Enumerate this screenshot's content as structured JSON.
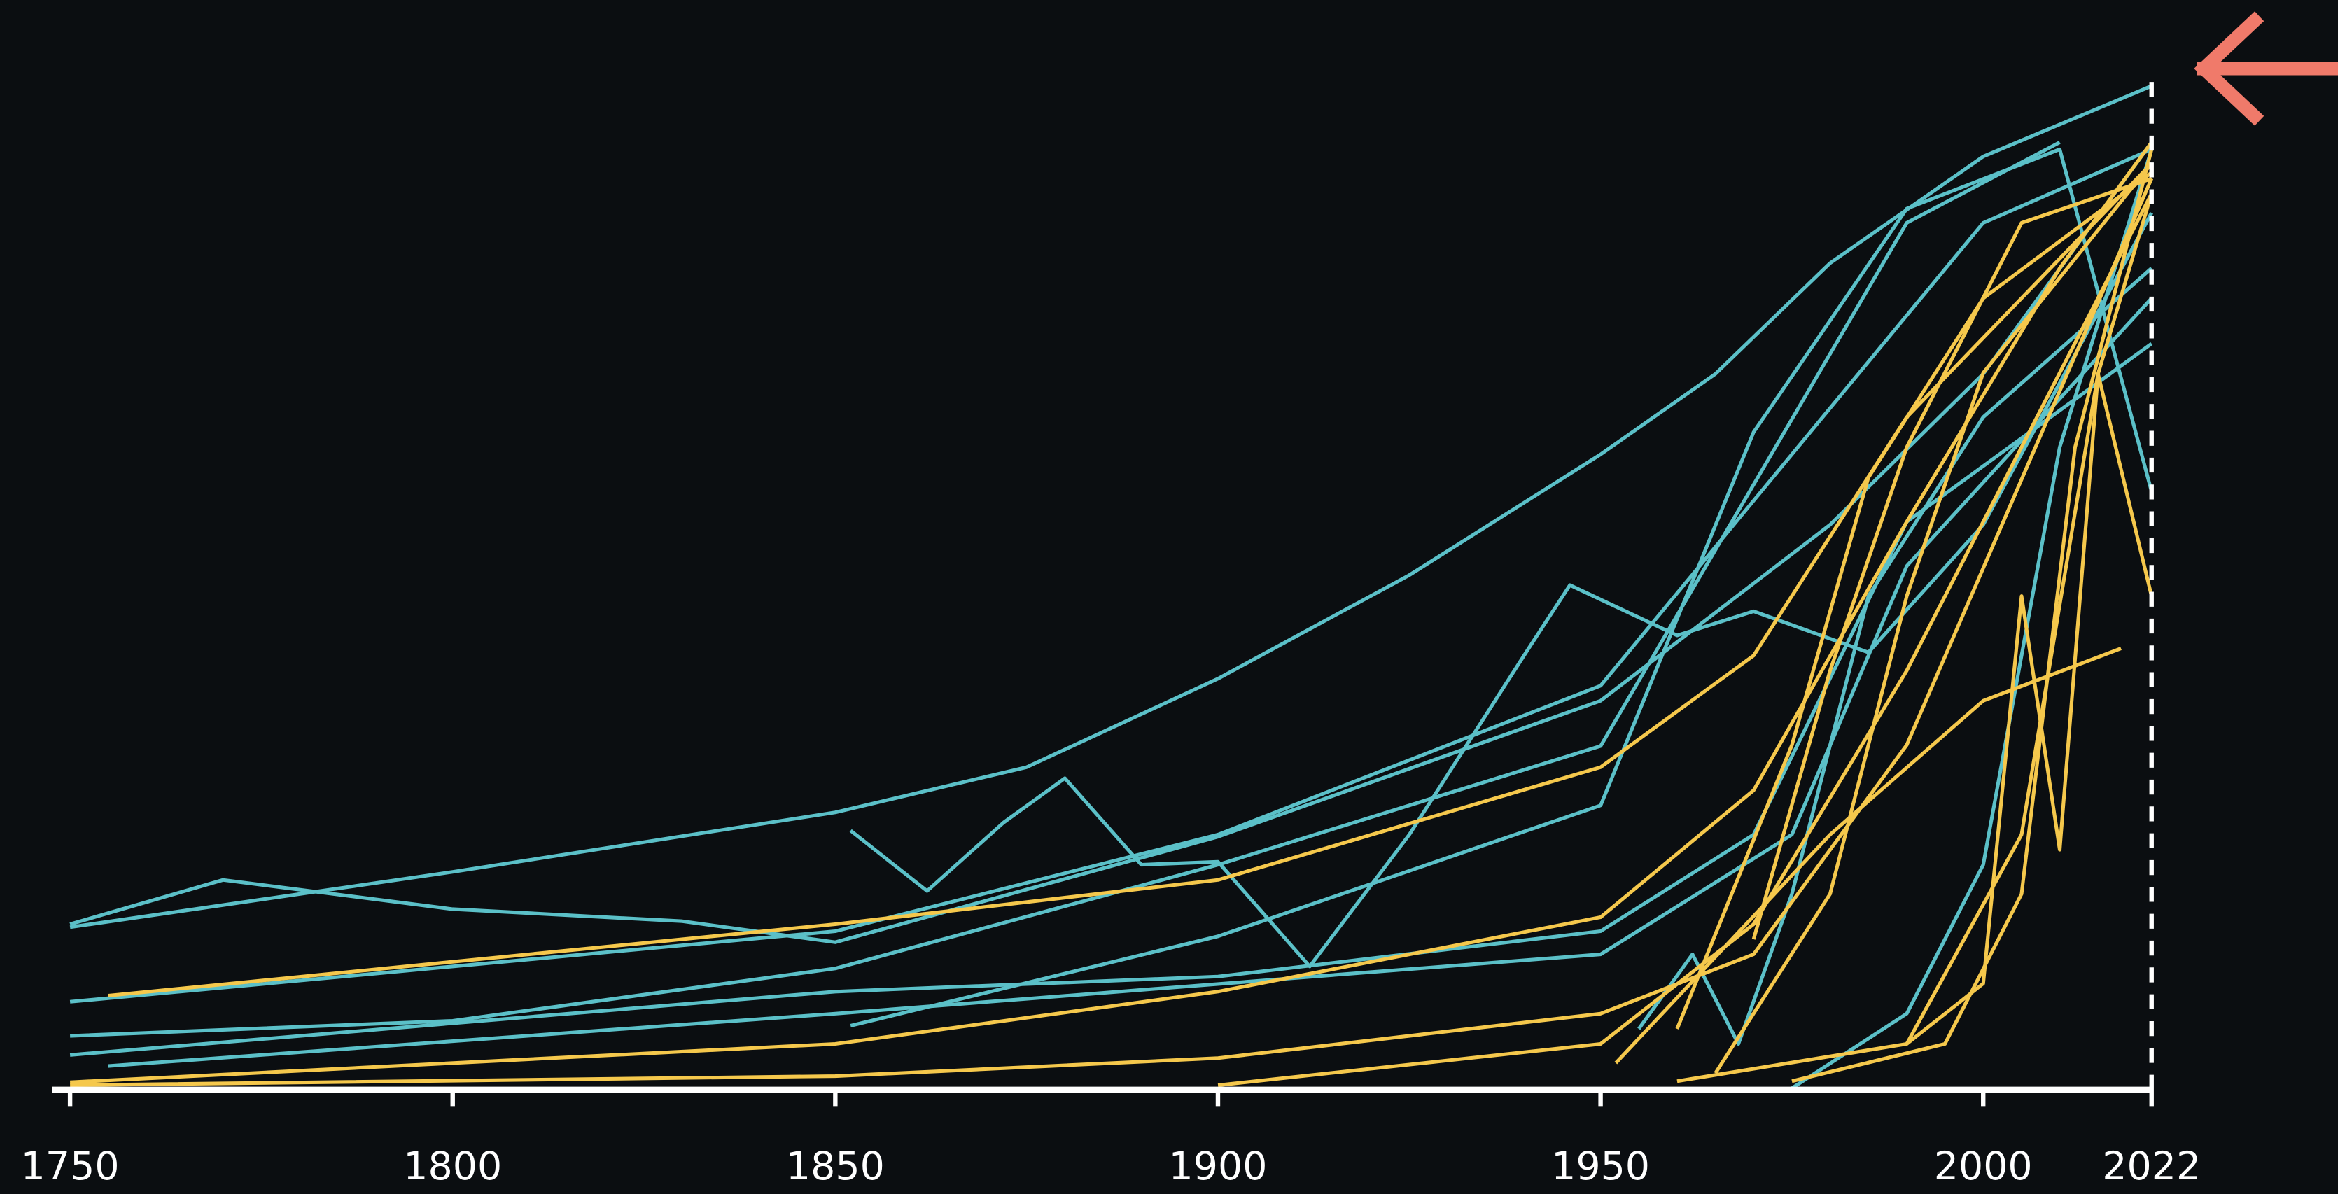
{
  "chart_data": {
    "type": "line",
    "xlim": [
      1750,
      2022
    ],
    "xticks": [
      1750,
      1800,
      1850,
      1900,
      1950,
      2000,
      2022
    ],
    "ylim": [
      0,
      100
    ],
    "series": [
      {
        "color": "#5bc0c8",
        "x": [
          1750,
          1800,
          1850,
          1875,
          1900,
          1925,
          1950,
          1965,
          1980,
          2000,
          2022
        ],
        "values": [
          16,
          21.5,
          27.4,
          31.9,
          40.7,
          51,
          63,
          71,
          82,
          92.6,
          99.6
        ]
      },
      {
        "color": "#5bc0c8",
        "x": [
          1750,
          1770,
          1800,
          1830,
          1850,
          1900,
          1950,
          1980,
          2000,
          2022
        ],
        "values": [
          16.3,
          20.7,
          17.8,
          16.6,
          14.5,
          25,
          38.5,
          56,
          71,
          94
        ]
      },
      {
        "color": "#5bc0c8",
        "x": [
          1852,
          1862,
          1872,
          1880,
          1890,
          1900,
          1912,
          1925,
          1940,
          1946,
          1960,
          1970,
          1985,
          2000,
          2022
        ],
        "values": [
          25.6,
          19.6,
          26.4,
          30.8,
          22.2,
          22.5,
          12.1,
          25.2,
          43,
          50,
          45,
          47.4,
          43.3,
          56,
          87
        ]
      },
      {
        "color": "#5bc0c8",
        "x": [
          1750,
          1850,
          1900,
          1950,
          2000,
          2022
        ],
        "values": [
          8.6,
          15.6,
          25.2,
          40,
          86,
          93.3
        ]
      },
      {
        "color": "#5bc0c8",
        "x": [
          1750,
          1800,
          1850,
          1900,
          1950,
          1990,
          2010
        ],
        "values": [
          5.2,
          6.7,
          11.9,
          22.2,
          34,
          86,
          94
        ]
      },
      {
        "color": "#5bc0c8",
        "x": [
          1750,
          1850,
          1900,
          1950,
          1970,
          1990,
          2022
        ],
        "values": [
          3.3,
          9.6,
          11.1,
          15.6,
          25.2,
          56.3,
          74
        ]
      },
      {
        "color": "#5bc0c8",
        "x": [
          1852,
          1900,
          1950,
          1970,
          1990,
          2010,
          2022
        ],
        "values": [
          6.2,
          15.1,
          28.1,
          65.2,
          87.4,
          93.3,
          59.3
        ]
      },
      {
        "color": "#5bc0c8",
        "x": [
          1975,
          1990,
          2000,
          2010,
          2022
        ],
        "values": [
          0,
          7.4,
          22.2,
          63.7,
          93.3
        ]
      },
      {
        "color": "#5bc0c8",
        "x": [
          1755,
          1850,
          1950,
          1975,
          1990,
          2022
        ],
        "values": [
          2.2,
          7.4,
          13.3,
          25.2,
          51.9,
          78.5
        ]
      },
      {
        "color": "#5bc0c8",
        "x": [
          1955,
          1962,
          1968,
          1975,
          1985,
          2000,
          2022
        ],
        "values": [
          5.9,
          13.3,
          4.4,
          19.3,
          48.9,
          66.7,
          81.5
        ]
      },
      {
        "color": "#f5c84c",
        "x": [
          1755,
          1850,
          1900,
          1950,
          1970,
          1990,
          2022
        ],
        "values": [
          9.2,
          16.3,
          20.7,
          31.9,
          43,
          66.7,
          91.9
        ]
      },
      {
        "color": "#f5c84c",
        "x": [
          1750,
          1850,
          1900,
          1950,
          1970,
          1990,
          2010,
          2022
        ],
        "values": [
          0.6,
          4.4,
          9.6,
          17,
          29.6,
          56.3,
          81.5,
          94
        ]
      },
      {
        "color": "#f5c84c",
        "x": [
          1750,
          1850,
          1900,
          1950,
          1970,
          1990,
          2022
        ],
        "values": [
          0.3,
          1.2,
          3,
          7.4,
          13.3,
          34.1,
          90.4
        ]
      },
      {
        "color": "#f5c84c",
        "x": [
          1900,
          1950,
          1970,
          1990,
          2010,
          2022
        ],
        "values": [
          0.3,
          4.4,
          16.3,
          41.5,
          71.1,
          88.9
        ]
      },
      {
        "color": "#f5c84c",
        "x": [
          1952,
          1980,
          2000,
          2018
        ],
        "values": [
          2.5,
          25.2,
          38.5,
          43.7
        ]
      },
      {
        "color": "#f5c84c",
        "x": [
          1960,
          1990,
          2000,
          2005,
          2010,
          2015,
          2022
        ],
        "values": [
          0.7,
          4.4,
          10.4,
          48.9,
          23.7,
          71,
          88.9
        ]
      },
      {
        "color": "#f5c84c",
        "x": [
          1965,
          1980,
          1990,
          2000,
          2022
        ],
        "values": [
          1.5,
          19.3,
          48.9,
          71.1,
          91.9
        ]
      },
      {
        "color": "#f5c84c",
        "x": [
          1975,
          1995,
          2005,
          2012,
          2022
        ],
        "values": [
          0.7,
          4.4,
          19.3,
          63.7,
          93.3
        ]
      },
      {
        "color": "#f5c84c",
        "x": [
          1960,
          1975,
          1985,
          2000,
          2022
        ],
        "values": [
          5.9,
          34.1,
          60.7,
          78.5,
          91
        ]
      },
      {
        "color": "#f5c84c",
        "x": [
          1970,
          1980,
          1990,
          2005,
          2022
        ],
        "values": [
          14.8,
          41.5,
          63.7,
          86,
          90.4
        ]
      },
      {
        "color": "#f5c84c",
        "x": [
          1990,
          2005,
          2015,
          2022
        ],
        "values": [
          4.4,
          25.2,
          71,
          48.9
        ]
      }
    ]
  }
}
